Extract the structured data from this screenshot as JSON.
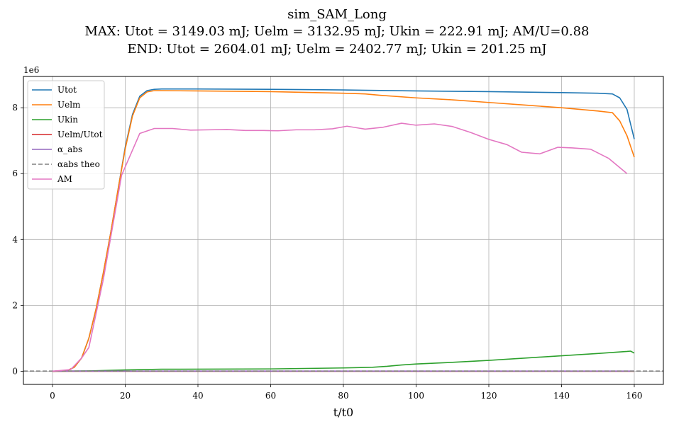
{
  "chart_data": {
    "type": "line",
    "title": "sim_SAM_Long",
    "subtitle_lines": [
      "MAX: Utot = 3149.03 mJ;  Uelm = 3132.95 mJ; Ukin = 222.91 mJ;  AM/U=0.88",
      "END: Utot = 2604.01 mJ;  Uelm = 2402.77 mJ;  Ukin = 201.25 mJ"
    ],
    "xlabel": "t/t0",
    "ylabel": "",
    "y_offset_text": "1e6",
    "xlim": [
      -8,
      168
    ],
    "ylim": [
      -0.4,
      8.95
    ],
    "y_scale_note": "values in units of 1e6",
    "x_ticks": [
      0,
      20,
      40,
      60,
      80,
      100,
      120,
      140,
      160
    ],
    "y_ticks": [
      0,
      2,
      4,
      6,
      8
    ],
    "grid": true,
    "legend_position": "upper-left",
    "series": [
      {
        "name": "Utot",
        "color": "#1f77b4",
        "style": "solid",
        "points": [
          [
            0,
            0
          ],
          [
            4,
            0.02
          ],
          [
            6,
            0.12
          ],
          [
            8,
            0.4
          ],
          [
            10,
            1.0
          ],
          [
            12,
            1.9
          ],
          [
            14,
            3.0
          ],
          [
            16,
            4.2
          ],
          [
            18,
            5.5
          ],
          [
            20,
            6.8
          ],
          [
            22,
            7.8
          ],
          [
            24,
            8.35
          ],
          [
            26,
            8.52
          ],
          [
            28,
            8.56
          ],
          [
            30,
            8.57
          ],
          [
            40,
            8.57
          ],
          [
            60,
            8.56
          ],
          [
            80,
            8.54
          ],
          [
            100,
            8.51
          ],
          [
            120,
            8.49
          ],
          [
            140,
            8.46
          ],
          [
            150,
            8.44
          ],
          [
            154,
            8.42
          ],
          [
            156,
            8.3
          ],
          [
            158,
            7.95
          ],
          [
            160,
            7.05
          ]
        ]
      },
      {
        "name": "Uelm",
        "color": "#ff7f0e",
        "style": "solid",
        "points": [
          [
            0,
            0
          ],
          [
            4,
            0.02
          ],
          [
            6,
            0.12
          ],
          [
            8,
            0.4
          ],
          [
            10,
            1.0
          ],
          [
            12,
            1.9
          ],
          [
            14,
            3.0
          ],
          [
            16,
            4.2
          ],
          [
            18,
            5.5
          ],
          [
            20,
            6.75
          ],
          [
            22,
            7.75
          ],
          [
            24,
            8.3
          ],
          [
            26,
            8.48
          ],
          [
            28,
            8.52
          ],
          [
            30,
            8.52
          ],
          [
            40,
            8.51
          ],
          [
            60,
            8.49
          ],
          [
            80,
            8.44
          ],
          [
            86,
            8.42
          ],
          [
            90,
            8.38
          ],
          [
            100,
            8.3
          ],
          [
            110,
            8.24
          ],
          [
            120,
            8.16
          ],
          [
            130,
            8.08
          ],
          [
            140,
            8.0
          ],
          [
            150,
            7.9
          ],
          [
            154,
            7.85
          ],
          [
            156,
            7.6
          ],
          [
            158,
            7.15
          ],
          [
            160,
            6.5
          ]
        ]
      },
      {
        "name": "Ukin",
        "color": "#2ca02c",
        "style": "solid",
        "points": [
          [
            0,
            0
          ],
          [
            10,
            0.01
          ],
          [
            20,
            0.04
          ],
          [
            30,
            0.06
          ],
          [
            60,
            0.07
          ],
          [
            80,
            0.1
          ],
          [
            88,
            0.12
          ],
          [
            92,
            0.15
          ],
          [
            96,
            0.19
          ],
          [
            100,
            0.22
          ],
          [
            110,
            0.27
          ],
          [
            120,
            0.33
          ],
          [
            130,
            0.4
          ],
          [
            140,
            0.47
          ],
          [
            150,
            0.54
          ],
          [
            158,
            0.6
          ],
          [
            159,
            0.61
          ],
          [
            160,
            0.55
          ]
        ]
      },
      {
        "name": "Uelm/Utot",
        "color": "#d62728",
        "style": "solid",
        "points": [
          [
            0,
            0
          ],
          [
            160,
            0
          ]
        ]
      },
      {
        "name": "α_abs",
        "color": "#9467bd",
        "style": "solid",
        "points": [
          [
            0,
            0.005
          ],
          [
            160,
            0.005
          ]
        ]
      },
      {
        "name": "αabs theo",
        "color": "#808080",
        "style": "dashed",
        "points": [
          [
            -8,
            0.005
          ],
          [
            168,
            0.005
          ]
        ]
      },
      {
        "name": "AM",
        "color": "#e377c2",
        "style": "solid",
        "points": [
          [
            0,
            0
          ],
          [
            5,
            0.05
          ],
          [
            8,
            0.4
          ],
          [
            10,
            0.72
          ],
          [
            14,
            2.8
          ],
          [
            19,
            5.95
          ],
          [
            24,
            7.22
          ],
          [
            28,
            7.37
          ],
          [
            33,
            7.37
          ],
          [
            38,
            7.32
          ],
          [
            43,
            7.33
          ],
          [
            48,
            7.34
          ],
          [
            53,
            7.31
          ],
          [
            58,
            7.31
          ],
          [
            62,
            7.3
          ],
          [
            67,
            7.33
          ],
          [
            72,
            7.33
          ],
          [
            77,
            7.36
          ],
          [
            81,
            7.44
          ],
          [
            86,
            7.35
          ],
          [
            91,
            7.41
          ],
          [
            96,
            7.53
          ],
          [
            100,
            7.47
          ],
          [
            105,
            7.51
          ],
          [
            110,
            7.43
          ],
          [
            115,
            7.25
          ],
          [
            120,
            7.04
          ],
          [
            125,
            6.88
          ],
          [
            129,
            6.65
          ],
          [
            134,
            6.6
          ],
          [
            139,
            6.8
          ],
          [
            143,
            6.78
          ],
          [
            148,
            6.74
          ],
          [
            153,
            6.46
          ],
          [
            158,
            6.0
          ]
        ]
      }
    ]
  }
}
